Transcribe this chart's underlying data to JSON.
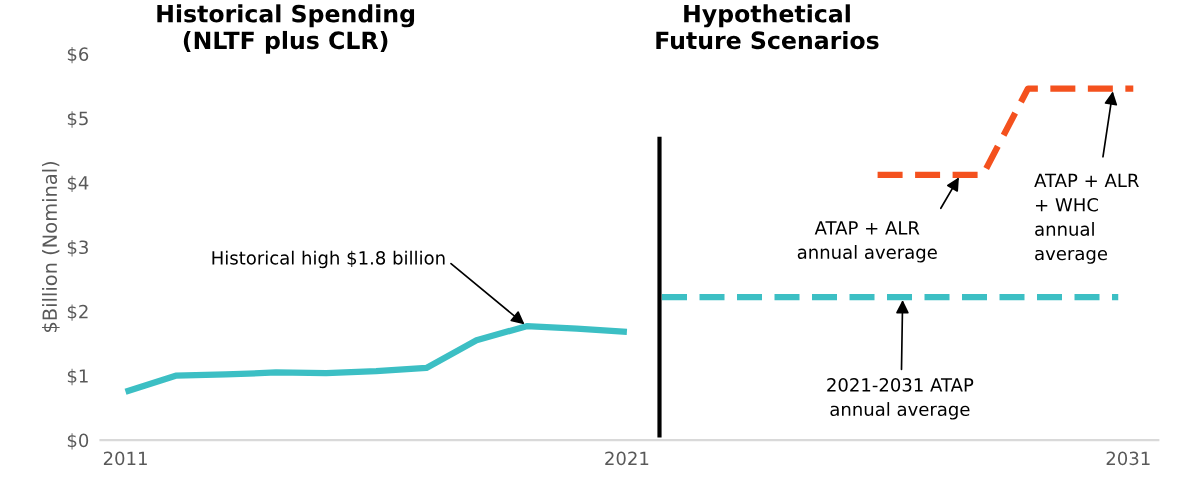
{
  "chart_data": {
    "type": "line",
    "ylabel": "$Billion (Nominal)",
    "series": [
      {
        "x": [
          2011,
          2012,
          2013,
          2014,
          2015,
          2016,
          2017,
          2018,
          2019,
          2020,
          2021
        ],
        "values": [
          0.75,
          1.0,
          1.02,
          1.05,
          1.04,
          1.07,
          1.12,
          1.55,
          1.77,
          1.73,
          1.68
        ],
        "color": "#3cbfc4",
        "line_style": "solid"
      },
      {
        "x": [
          2021.7,
          2030.8
        ],
        "values": [
          2.22,
          2.22
        ],
        "color": "#3cbfc4",
        "line_style": "dashed"
      },
      {
        "x": [
          2026,
          2028.1,
          2029,
          2031.1
        ],
        "values": [
          4.12,
          4.12,
          5.46,
          5.46
        ],
        "color": "#f4511e",
        "line_style": "dashed"
      }
    ],
    "xlim": [
      2010.5,
      2031.6
    ],
    "xticks": [
      2011,
      2021,
      2031
    ],
    "ylim": [
      0,
      6
    ],
    "yticks": [
      {
        "value": 0,
        "label": "$0"
      },
      {
        "value": 1,
        "label": "$1"
      },
      {
        "value": 2,
        "label": "$2"
      },
      {
        "value": 3,
        "label": "$3"
      },
      {
        "value": 4,
        "label": "$4"
      },
      {
        "value": 5,
        "label": "$5"
      },
      {
        "value": 6,
        "label": "$6"
      }
    ],
    "ref_lines": [
      {
        "axis": "x",
        "value": 2021.65,
        "color": "#000000",
        "line_style": "solid"
      }
    ],
    "annotations": [
      "Historical Spending\n(NLTF plus CLR)",
      "Hypothetical\nFuture Scenarios",
      {
        "text": "Historical high $1.8 billion",
        "x": 2019,
        "y": 1.77
      },
      {
        "text": "ATAP + ALR\nannual average",
        "x": 2027.65,
        "y": 4.12
      },
      {
        "text": "ATAP + ALR\n+ WHC\nannual\naverage",
        "x": 2030.7,
        "y": 5.46
      },
      {
        "text": "2021-2031 ATAP\nannual average",
        "x": 2026.5,
        "y": 2.22
      }
    ],
    "grid": false,
    "legend": false
  }
}
